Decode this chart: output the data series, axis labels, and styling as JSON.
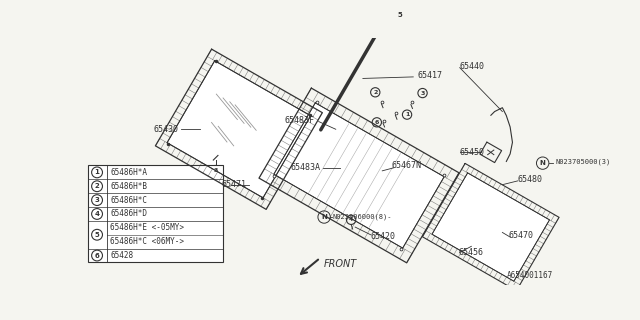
{
  "bg_color": "#f5f5f0",
  "line_color": "#333333",
  "legend_rows": [
    {
      "num": "1",
      "text1": "65486H*A",
      "text2": null
    },
    {
      "num": "2",
      "text1": "65486H*B",
      "text2": null
    },
    {
      "num": "3",
      "text1": "65486H*C",
      "text2": null
    },
    {
      "num": "4",
      "text1": "65486H*D",
      "text2": null
    },
    {
      "num": "5",
      "text1": "65486H*E <-05MY>",
      "text2": "65486H*C <06MY->"
    },
    {
      "num": "6",
      "text1": "65428",
      "text2": null
    }
  ],
  "footnote": "A654001167"
}
